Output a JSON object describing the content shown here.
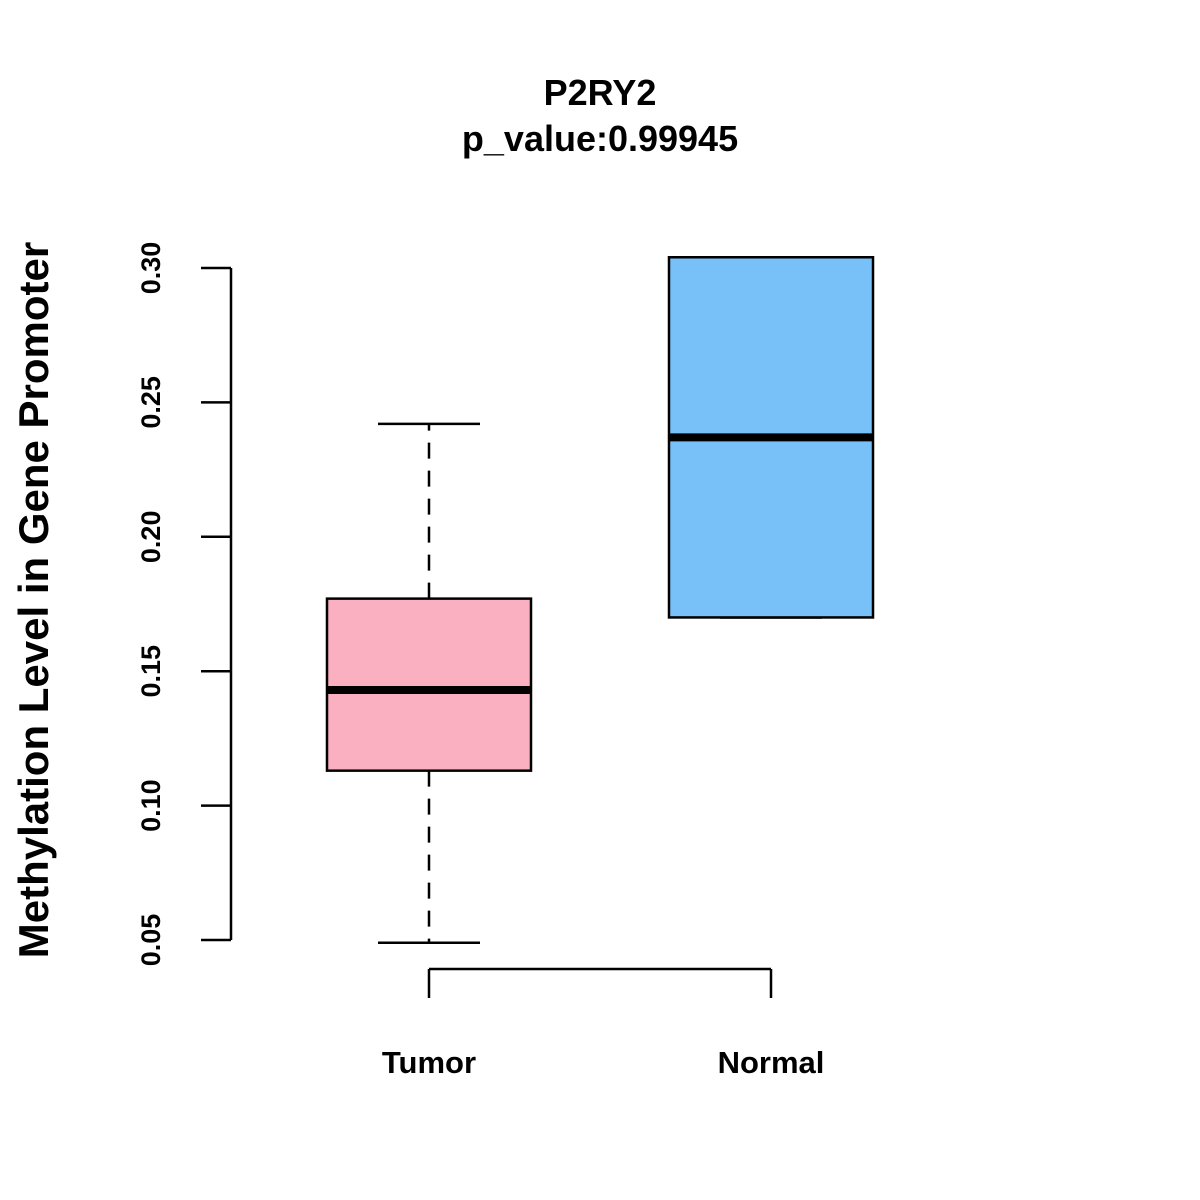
{
  "chart_data": {
    "type": "boxplot",
    "title": "P2RY2",
    "subtitle": "p_value:0.99945",
    "xlabel": "",
    "ylabel": "Methylation Level in Gene Promoter",
    "ylim": [
      0.05,
      0.3
    ],
    "yticks": [
      "0.05",
      "0.10",
      "0.15",
      "0.20",
      "0.25",
      "0.30"
    ],
    "grid": false,
    "categories": [
      "Tumor",
      "Normal"
    ],
    "boxes": [
      {
        "name": "Tumor",
        "whisker_low": 0.049,
        "q1": 0.113,
        "median": 0.143,
        "q3": 0.177,
        "whisker_high": 0.242,
        "color": "#FBB0C1"
      },
      {
        "name": "Normal",
        "whisker_low": 0.17,
        "q1": 0.17,
        "median": 0.237,
        "q3": 0.304,
        "whisker_high": 0.304,
        "color": "#78C1F8"
      }
    ]
  }
}
